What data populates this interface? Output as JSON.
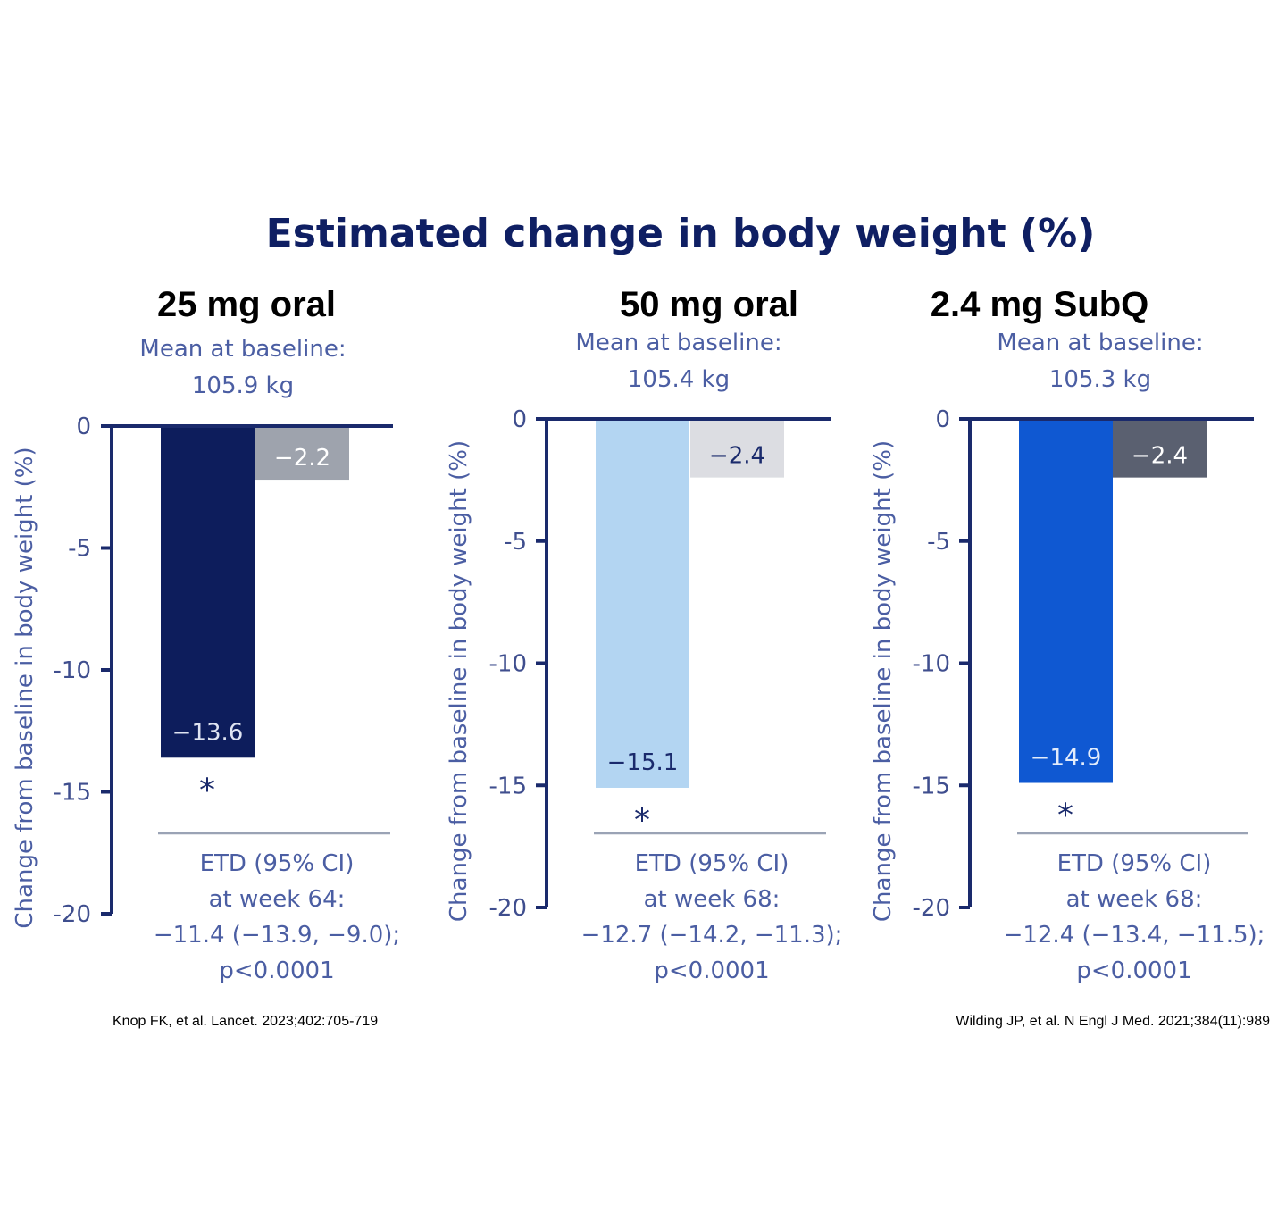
{
  "title": "Estimated change in body weight (%)",
  "colors": {
    "title": "#0f1f63",
    "axis": "#1a2a6c",
    "label_text": "#4b5ea3",
    "separator": "#9aa3b5"
  },
  "chart_data": [
    {
      "type": "bar",
      "title": "25 mg oral",
      "baseline_line1": "Mean at baseline:",
      "baseline_line2": "105.9 kg",
      "ylabel": "Change from baseline in body weight (%)",
      "ylim": [
        -20,
        0
      ],
      "yticks": [
        0,
        -5,
        -10,
        -15,
        -20
      ],
      "series": [
        {
          "values": [
            -13.6
          ],
          "color": "#0d1d5c",
          "label_color": "#dfe4f2",
          "label": "−13.6",
          "significance": "*"
        },
        {
          "values": [
            -2.2
          ],
          "color": "#9ea3ad",
          "label_color": "#ffffff",
          "label": "−2.2"
        }
      ],
      "etd": [
        "ETD (95% CI)",
        "at week 64:",
        "−11.4 (−13.9, −9.0);",
        "p<0.0001"
      ],
      "citation": "Knop FK, et al. Lancet. 2023;402:705-719"
    },
    {
      "type": "bar",
      "title": "50 mg oral",
      "baseline_line1": "Mean at baseline:",
      "baseline_line2": "105.4 kg",
      "ylabel": "Change from baseline in body weight (%)",
      "ylim": [
        -20,
        0
      ],
      "yticks": [
        0,
        -5,
        -10,
        -15,
        -20
      ],
      "series": [
        {
          "values": [
            -15.1
          ],
          "color": "#b3d5f2",
          "label_color": "#1a2a6c",
          "label": "−15.1",
          "significance": "*"
        },
        {
          "values": [
            -2.4
          ],
          "color": "#dcdde2",
          "label_color": "#1a2a6c",
          "label": "−2.4"
        }
      ],
      "etd": [
        "ETD (95% CI)",
        "at week 68:",
        "−12.7 (−14.2, −11.3);",
        "p<0.0001"
      ]
    },
    {
      "type": "bar",
      "title": "2.4 mg SubQ",
      "baseline_line1": "Mean at baseline:",
      "baseline_line2": "105.3 kg",
      "ylabel": "Change from baseline in body weight (%)",
      "ylim": [
        -20,
        0
      ],
      "yticks": [
        0,
        -5,
        -10,
        -15,
        -20
      ],
      "series": [
        {
          "values": [
            -14.9
          ],
          "color": "#0f58d2",
          "label_color": "#e3ecfb",
          "label": "−14.9",
          "significance": "*"
        },
        {
          "values": [
            -2.4
          ],
          "color": "#5a6070",
          "label_color": "#ffffff",
          "label": "−2.4"
        }
      ],
      "etd": [
        "ETD (95% CI)",
        "at week 68:",
        "−12.4 (−13.4, −11.5);",
        "p<0.0001"
      ],
      "citation": "Wilding JP, et al. N Engl J Med. 2021;384(11):989"
    }
  ]
}
